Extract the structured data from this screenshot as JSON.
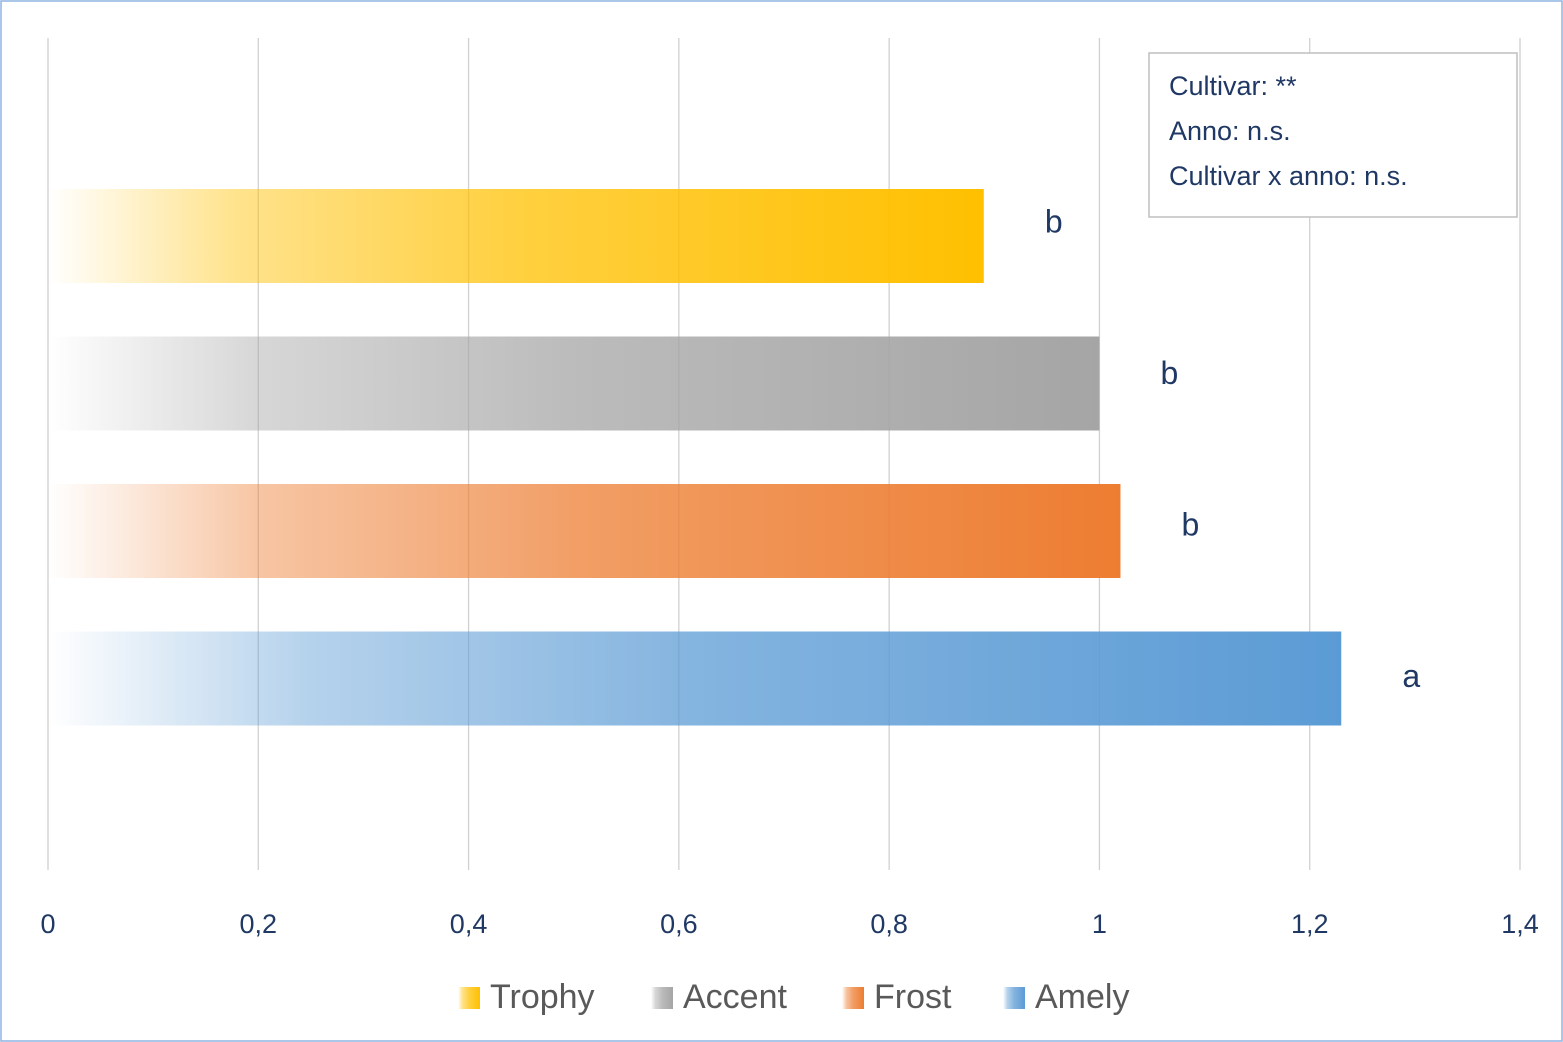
{
  "chart_data": {
    "type": "bar",
    "orientation": "horizontal",
    "series": [
      {
        "name": "Trophy",
        "color": "#ffc000",
        "values": [
          0.89
        ]
      },
      {
        "name": "Accent",
        "color": "#a5a5a5",
        "values": [
          1.0
        ]
      },
      {
        "name": "Frost",
        "color": "#ed7d31",
        "values": [
          1.02
        ]
      },
      {
        "name": "Amely",
        "color": "#5b9bd5",
        "values": [
          1.23
        ]
      }
    ],
    "annotations": [
      "b",
      "b",
      "b",
      "a"
    ],
    "note": [
      "Cultivar: **",
      "Anno: n.s.",
      "Cultivar x anno: n.s."
    ],
    "xlim": [
      0,
      1.4
    ],
    "xticks": [
      0,
      {
        "value": 0.2,
        "label": "0,2"
      },
      {
        "value": 0.4,
        "label": "0,4"
      },
      {
        "value": 0.6,
        "label": "0,6"
      },
      {
        "value": 0.8,
        "label": "0,8"
      },
      1,
      {
        "value": 1.2,
        "label": "1,2"
      },
      {
        "value": 1.4,
        "label": "1,4"
      }
    ],
    "grid": true,
    "legend": "bottom"
  }
}
